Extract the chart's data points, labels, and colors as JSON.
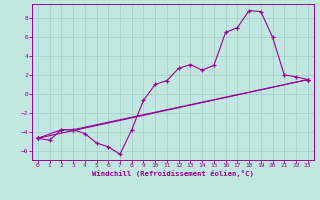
{
  "xlabel": "Windchill (Refroidissement éolien,°C)",
  "xlim": [
    -0.5,
    23.5
  ],
  "ylim": [
    -7.0,
    9.5
  ],
  "xticks": [
    0,
    1,
    2,
    3,
    4,
    5,
    6,
    7,
    8,
    9,
    10,
    11,
    12,
    13,
    14,
    15,
    16,
    17,
    18,
    19,
    20,
    21,
    22,
    23
  ],
  "yticks": [
    -6,
    -4,
    -2,
    0,
    2,
    4,
    6,
    8
  ],
  "bg_color": "#c0e8e0",
  "line_color": "#990099",
  "grid_color": "#a8d0cc",
  "main_x": [
    0,
    1,
    2,
    3,
    4,
    5,
    6,
    7,
    8,
    9,
    10,
    11,
    12,
    13,
    14,
    15,
    16,
    17,
    18,
    19,
    20,
    21,
    22,
    23
  ],
  "main_y": [
    -4.7,
    -4.9,
    -3.8,
    -3.8,
    -4.2,
    -5.2,
    -5.6,
    -6.4,
    -3.8,
    -0.7,
    1.0,
    1.4,
    2.7,
    3.1,
    2.5,
    3.0,
    6.5,
    7.0,
    8.8,
    8.7,
    6.0,
    2.0,
    1.8,
    1.5
  ],
  "line2_x": [
    0,
    2,
    3,
    23
  ],
  "line2_y": [
    -4.7,
    -3.8,
    -3.8,
    1.5
  ],
  "line3_x": [
    0,
    23
  ],
  "line3_y": [
    -4.7,
    1.5
  ]
}
